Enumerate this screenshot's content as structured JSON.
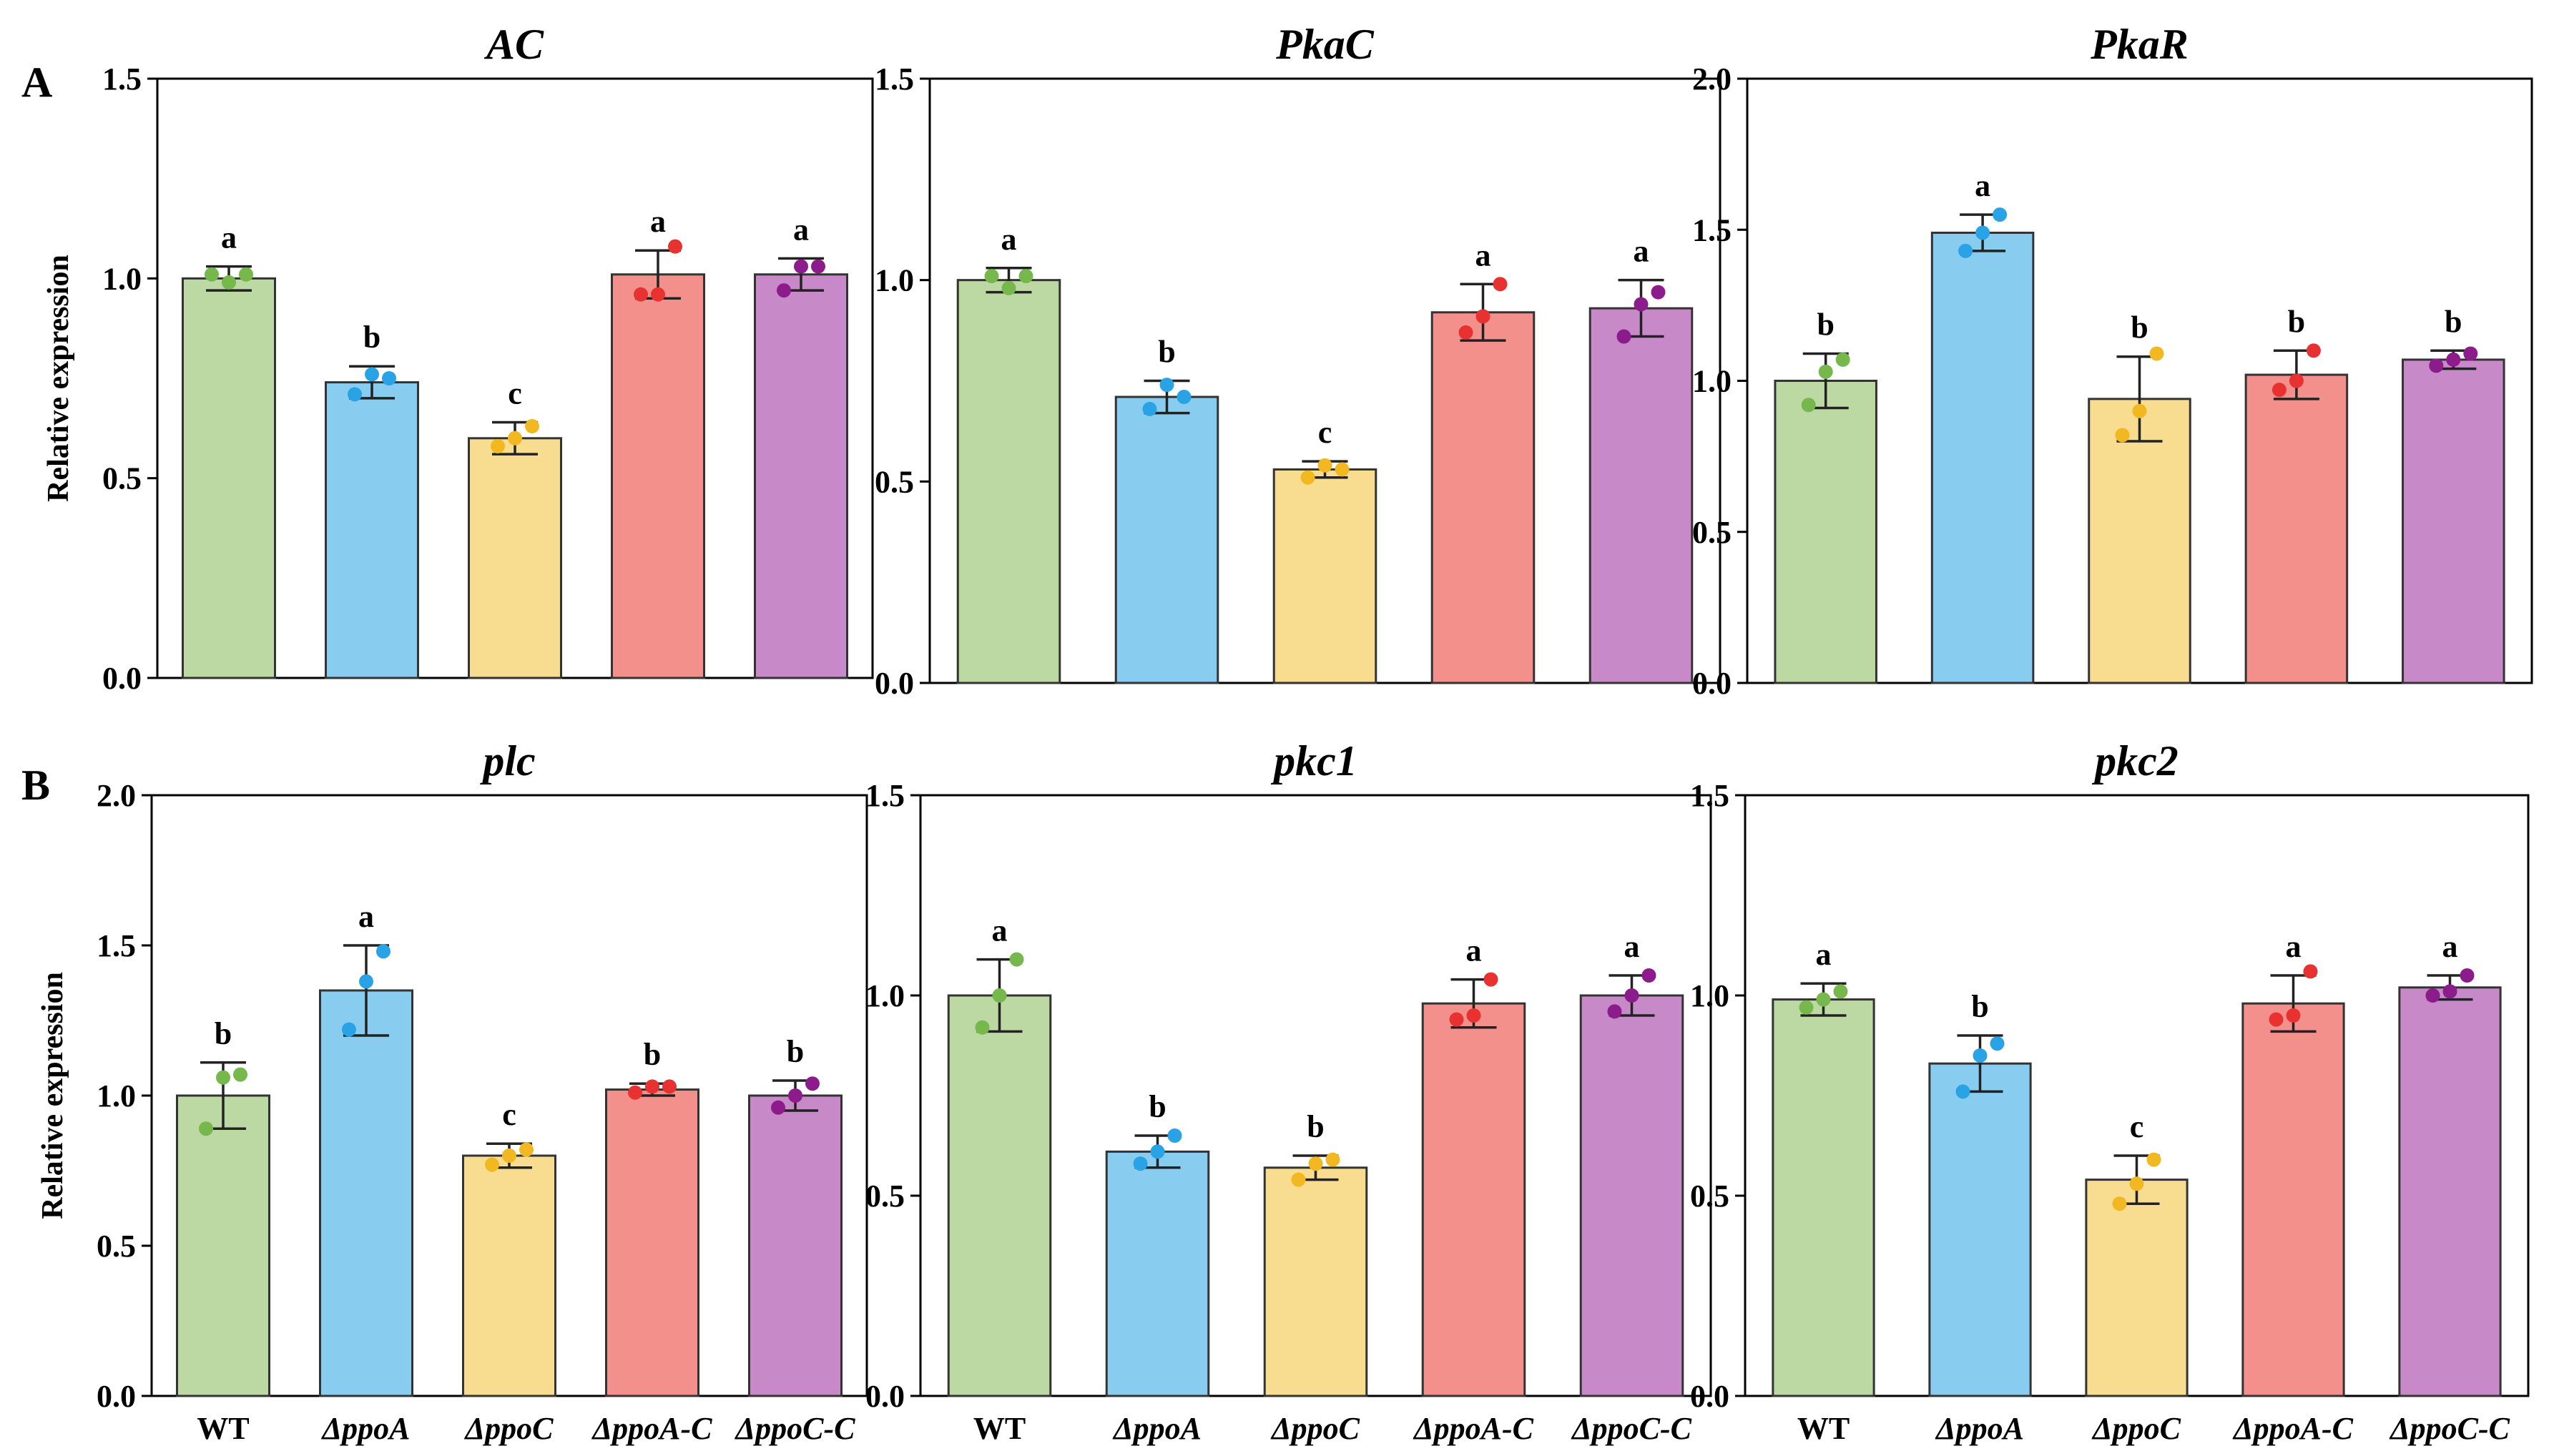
{
  "figure": {
    "panel_labels": [
      "A",
      "B"
    ],
    "ylabel": "Relative expression",
    "group_labels": [
      "WT",
      "ΔppoA",
      "ΔppoC",
      "ΔppoA-C",
      "ΔppoC-C"
    ],
    "colors": [
      "#bcd9a4",
      "#88cdf0",
      "#f8dc90",
      "#f4908c",
      "#c889c8"
    ],
    "dot_colors": [
      "#76b84c",
      "#29a3e6",
      "#f2b821",
      "#e83232",
      "#8c1c8c"
    ]
  },
  "chart_data": [
    {
      "type": "bar",
      "title": "AC",
      "categories": [
        "WT",
        "ΔppoA",
        "ΔppoC",
        "ΔppoA-C",
        "ΔppoC-C"
      ],
      "ylim": [
        0,
        1.5
      ],
      "yticks": [
        "0.0",
        "0.5",
        "1.0",
        "1.5"
      ],
      "ylabel": "Relative expression",
      "values": [
        1.0,
        0.74,
        0.6,
        1.01,
        1.01
      ],
      "errors": [
        0.03,
        0.04,
        0.04,
        0.06,
        0.04
      ],
      "points": [
        [
          1.01,
          0.99,
          1.01
        ],
        [
          0.71,
          0.76,
          0.75
        ],
        [
          0.58,
          0.6,
          0.63
        ],
        [
          0.96,
          0.96,
          1.08
        ],
        [
          0.97,
          1.03,
          1.03
        ]
      ],
      "significance": [
        "a",
        "b",
        "c",
        "a",
        "a"
      ]
    },
    {
      "type": "bar",
      "title": "PkaC",
      "categories": [
        "WT",
        "ΔppoA",
        "ΔppoC",
        "ΔppoA-C",
        "ΔppoC-C"
      ],
      "ylim": [
        0,
        1.5
      ],
      "yticks": [
        "0.0",
        "0.5",
        "1.0",
        "1.5"
      ],
      "ylabel": "",
      "values": [
        1.0,
        0.71,
        0.53,
        0.92,
        0.93
      ],
      "errors": [
        0.03,
        0.04,
        0.02,
        0.07,
        0.07
      ],
      "points": [
        [
          1.01,
          0.98,
          1.01
        ],
        [
          0.68,
          0.74,
          0.71
        ],
        [
          0.51,
          0.54,
          0.53
        ],
        [
          0.87,
          0.91,
          0.99
        ],
        [
          0.86,
          0.94,
          0.97
        ]
      ],
      "significance": [
        "a",
        "b",
        "c",
        "a",
        "a"
      ]
    },
    {
      "type": "bar",
      "title": "PkaR",
      "categories": [
        "WT",
        "ΔppoA",
        "ΔppoC",
        "ΔppoA-C",
        "ΔppoC-C"
      ],
      "ylim": [
        0,
        2.0
      ],
      "yticks": [
        "0.0",
        "0.5",
        "1.0",
        "1.5",
        "2.0"
      ],
      "ylabel": "",
      "values": [
        1.0,
        1.49,
        0.94,
        1.02,
        1.07
      ],
      "errors": [
        0.09,
        0.06,
        0.14,
        0.08,
        0.03
      ],
      "points": [
        [
          0.92,
          1.03,
          1.07
        ],
        [
          1.43,
          1.49,
          1.55
        ],
        [
          0.82,
          0.9,
          1.09
        ],
        [
          0.97,
          1.0,
          1.1
        ],
        [
          1.05,
          1.07,
          1.09
        ]
      ],
      "significance": [
        "b",
        "a",
        "b",
        "b",
        "b"
      ]
    },
    {
      "type": "bar",
      "title": "plc",
      "categories": [
        "WT",
        "ΔppoA",
        "ΔppoC",
        "ΔppoA-C",
        "ΔppoC-C"
      ],
      "ylim": [
        0,
        2.0
      ],
      "yticks": [
        "0.0",
        "0.5",
        "1.0",
        "1.5",
        "2.0"
      ],
      "ylabel": "Relative expression",
      "values": [
        1.0,
        1.35,
        0.8,
        1.02,
        1.0
      ],
      "errors": [
        0.11,
        0.15,
        0.04,
        0.02,
        0.05
      ],
      "points": [
        [
          0.89,
          1.06,
          1.07
        ],
        [
          1.22,
          1.38,
          1.48
        ],
        [
          0.77,
          0.8,
          0.82
        ],
        [
          1.01,
          1.03,
          1.03
        ],
        [
          0.96,
          1.0,
          1.04
        ]
      ],
      "significance": [
        "b",
        "a",
        "c",
        "b",
        "b"
      ]
    },
    {
      "type": "bar",
      "title": "pkc1",
      "categories": [
        "WT",
        "ΔppoA",
        "ΔppoC",
        "ΔppoA-C",
        "ΔppoC-C"
      ],
      "ylim": [
        0,
        1.5
      ],
      "yticks": [
        "0.0",
        "0.5",
        "1.0",
        "1.5"
      ],
      "ylabel": "",
      "values": [
        1.0,
        0.61,
        0.57,
        0.98,
        1.0
      ],
      "errors": [
        0.09,
        0.04,
        0.03,
        0.06,
        0.05
      ],
      "points": [
        [
          0.92,
          1.0,
          1.09
        ],
        [
          0.58,
          0.61,
          0.65
        ],
        [
          0.54,
          0.58,
          0.59
        ],
        [
          0.94,
          0.95,
          1.04
        ],
        [
          0.96,
          1.0,
          1.05
        ]
      ],
      "significance": [
        "a",
        "b",
        "b",
        "a",
        "a"
      ]
    },
    {
      "type": "bar",
      "title": "pkc2",
      "categories": [
        "WT",
        "ΔppoA",
        "ΔppoC",
        "ΔppoA-C",
        "ΔppoC-C"
      ],
      "ylim": [
        0,
        1.5
      ],
      "yticks": [
        "0.0",
        "0.5",
        "1.0",
        "1.5"
      ],
      "ylabel": "",
      "values": [
        0.99,
        0.83,
        0.54,
        0.98,
        1.02
      ],
      "errors": [
        0.04,
        0.07,
        0.06,
        0.07,
        0.03
      ],
      "points": [
        [
          0.97,
          0.99,
          1.01
        ],
        [
          0.76,
          0.85,
          0.88
        ],
        [
          0.48,
          0.53,
          0.59
        ],
        [
          0.94,
          0.95,
          1.06
        ],
        [
          1.0,
          1.01,
          1.05
        ]
      ],
      "significance": [
        "a",
        "b",
        "c",
        "a",
        "a"
      ]
    }
  ]
}
